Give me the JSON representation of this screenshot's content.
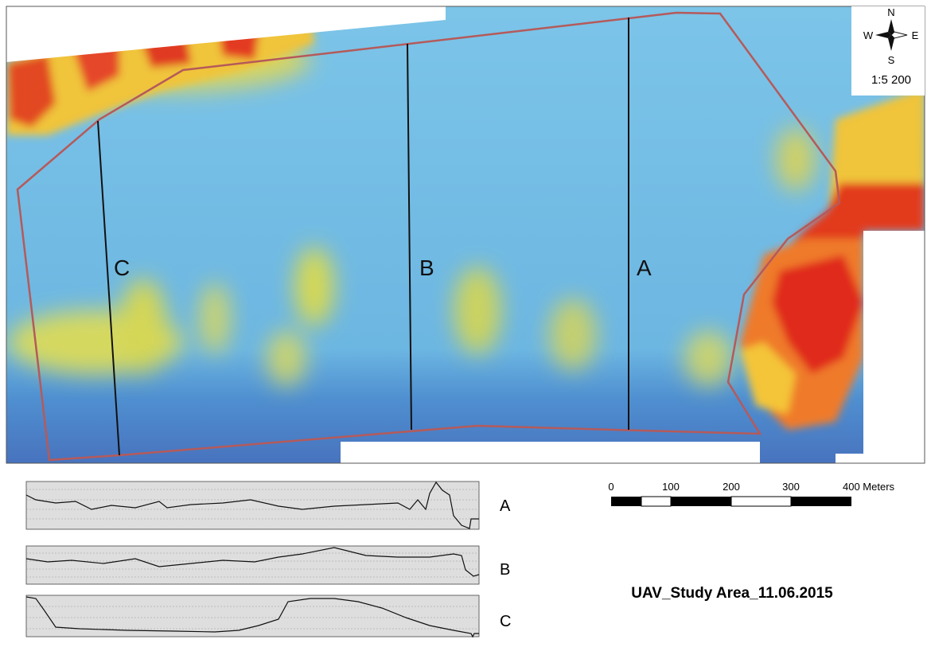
{
  "map": {
    "compass": {
      "north": "N",
      "south": "S",
      "west": "W",
      "east": "E"
    },
    "scale_ratio": "1:5 200",
    "transects": [
      "C",
      "B",
      "A"
    ],
    "profiles": [
      "A",
      "B",
      "C"
    ],
    "scale_bar": {
      "labels": [
        "0",
        "100",
        "200",
        "300",
        "400 Meters"
      ]
    },
    "title": "UAV_Study Area_11.06.2015"
  }
}
